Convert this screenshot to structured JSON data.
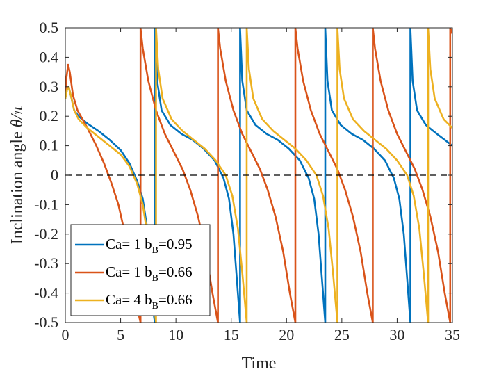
{
  "chart_data": {
    "type": "line",
    "title": "",
    "xlabel": "Time",
    "ylabel_text": "Inclination angle ",
    "ylabel_symbol": "θ/π",
    "xlim": [
      0,
      35
    ],
    "ylim": [
      -0.5,
      0.5
    ],
    "xticks": [
      0,
      5,
      10,
      15,
      20,
      25,
      30,
      35
    ],
    "xtick_labels": [
      "0",
      "5",
      "10",
      "15",
      "20",
      "25",
      "30",
      "35"
    ],
    "yticks": [
      -0.5,
      -0.4,
      -0.3,
      -0.2,
      -0.1,
      0,
      0.1,
      0.2,
      0.3,
      0.4,
      0.5
    ],
    "ytick_labels": [
      "-0.5",
      "-0.4",
      "-0.3",
      "-0.2",
      "-0.1",
      "0",
      "0.1",
      "0.2",
      "0.3",
      "0.4",
      "0.5"
    ],
    "grid": false,
    "reference_line": {
      "y": 0,
      "style": "dashed",
      "color": "#000000"
    },
    "legend_position": "bottom-left",
    "series": [
      {
        "name": "Ca= 1 b_B=0.95",
        "legend_main": "Ca= 1 b",
        "legend_sub": "B",
        "legend_tail": "=0.95",
        "color": "#0072BD",
        "period": 7.7,
        "start_peak": [
          0.25,
          0.3
        ],
        "points": [
          [
            0.0,
            0.26
          ],
          [
            0.15,
            0.29
          ],
          [
            0.3,
            0.3
          ],
          [
            0.5,
            0.27
          ],
          [
            0.8,
            0.22
          ],
          [
            1.2,
            0.2
          ],
          [
            2.0,
            0.175
          ],
          [
            3.0,
            0.15
          ],
          [
            4.0,
            0.12
          ],
          [
            5.0,
            0.085
          ],
          [
            5.8,
            0.04
          ],
          [
            6.5,
            -0.02
          ],
          [
            7.0,
            -0.08
          ],
          [
            7.4,
            -0.18
          ],
          [
            7.7,
            -0.32
          ],
          [
            7.9,
            -0.45
          ],
          [
            8.1,
            -0.5
          ],
          [
            8.1,
            0.5
          ],
          [
            8.3,
            0.32
          ],
          [
            8.7,
            0.22
          ],
          [
            9.5,
            0.17
          ],
          [
            10.5,
            0.14
          ],
          [
            11.5,
            0.12
          ],
          [
            12.5,
            0.09
          ],
          [
            13.5,
            0.05
          ],
          [
            14.3,
            -0.01
          ],
          [
            14.8,
            -0.08
          ],
          [
            15.2,
            -0.2
          ],
          [
            15.5,
            -0.35
          ],
          [
            15.8,
            -0.5
          ],
          [
            15.8,
            0.5
          ],
          [
            16.0,
            0.32
          ],
          [
            16.4,
            0.22
          ],
          [
            17.2,
            0.17
          ],
          [
            18.2,
            0.14
          ],
          [
            19.2,
            0.12
          ],
          [
            20.2,
            0.09
          ],
          [
            21.2,
            0.05
          ],
          [
            22.0,
            -0.01
          ],
          [
            22.5,
            -0.08
          ],
          [
            22.9,
            -0.2
          ],
          [
            23.2,
            -0.35
          ],
          [
            23.5,
            -0.5
          ],
          [
            23.5,
            0.5
          ],
          [
            23.7,
            0.32
          ],
          [
            24.1,
            0.22
          ],
          [
            24.9,
            0.17
          ],
          [
            25.9,
            0.14
          ],
          [
            26.9,
            0.12
          ],
          [
            27.9,
            0.09
          ],
          [
            28.9,
            0.05
          ],
          [
            29.7,
            -0.01
          ],
          [
            30.2,
            -0.08
          ],
          [
            30.6,
            -0.2
          ],
          [
            30.9,
            -0.35
          ],
          [
            31.2,
            -0.5
          ],
          [
            31.2,
            0.5
          ],
          [
            31.4,
            0.32
          ],
          [
            31.8,
            0.22
          ],
          [
            32.6,
            0.17
          ],
          [
            33.6,
            0.14
          ],
          [
            35.0,
            0.1
          ]
        ]
      },
      {
        "name": "Ca= 1 b_B=0.66",
        "legend_main": "Ca= 1 b",
        "legend_sub": "B",
        "legend_tail": "=0.66",
        "color": "#D95319",
        "points": [
          [
            0.0,
            0.28
          ],
          [
            0.1,
            0.33
          ],
          [
            0.25,
            0.375
          ],
          [
            0.4,
            0.35
          ],
          [
            0.7,
            0.27
          ],
          [
            1.1,
            0.22
          ],
          [
            2.0,
            0.16
          ],
          [
            2.8,
            0.1
          ],
          [
            3.5,
            0.04
          ],
          [
            4.2,
            -0.03
          ],
          [
            4.8,
            -0.1
          ],
          [
            5.4,
            -0.2
          ],
          [
            6.0,
            -0.32
          ],
          [
            6.5,
            -0.45
          ],
          [
            6.8,
            -0.5
          ],
          [
            6.8,
            0.5
          ],
          [
            7.0,
            0.43
          ],
          [
            7.5,
            0.32
          ],
          [
            8.2,
            0.22
          ],
          [
            9.0,
            0.14
          ],
          [
            9.8,
            0.08
          ],
          [
            10.6,
            0.02
          ],
          [
            11.3,
            -0.05
          ],
          [
            12.0,
            -0.14
          ],
          [
            12.7,
            -0.26
          ],
          [
            13.3,
            -0.4
          ],
          [
            13.8,
            -0.5
          ],
          [
            13.8,
            0.5
          ],
          [
            14.0,
            0.43
          ],
          [
            14.5,
            0.32
          ],
          [
            15.2,
            0.22
          ],
          [
            16.0,
            0.14
          ],
          [
            16.8,
            0.08
          ],
          [
            17.6,
            0.02
          ],
          [
            18.3,
            -0.05
          ],
          [
            19.0,
            -0.14
          ],
          [
            19.7,
            -0.26
          ],
          [
            20.3,
            -0.4
          ],
          [
            20.8,
            -0.5
          ],
          [
            20.8,
            0.5
          ],
          [
            21.0,
            0.43
          ],
          [
            21.5,
            0.32
          ],
          [
            22.2,
            0.22
          ],
          [
            23.0,
            0.14
          ],
          [
            23.8,
            0.08
          ],
          [
            24.6,
            0.02
          ],
          [
            25.3,
            -0.05
          ],
          [
            26.0,
            -0.14
          ],
          [
            26.7,
            -0.26
          ],
          [
            27.3,
            -0.4
          ],
          [
            27.8,
            -0.5
          ],
          [
            27.8,
            0.5
          ],
          [
            28.0,
            0.43
          ],
          [
            28.5,
            0.32
          ],
          [
            29.2,
            0.22
          ],
          [
            30.0,
            0.14
          ],
          [
            30.8,
            0.08
          ],
          [
            31.6,
            0.02
          ],
          [
            32.3,
            -0.05
          ],
          [
            33.0,
            -0.14
          ],
          [
            33.7,
            -0.26
          ],
          [
            34.3,
            -0.4
          ],
          [
            34.8,
            -0.5
          ],
          [
            34.8,
            0.5
          ],
          [
            35.0,
            0.48
          ]
        ]
      },
      {
        "name": "Ca= 4 b_B=0.66",
        "legend_main": "Ca= 4 b",
        "legend_sub": "B",
        "legend_tail": "=0.66",
        "color": "#EDB120",
        "points": [
          [
            0.0,
            0.26
          ],
          [
            0.15,
            0.29
          ],
          [
            0.3,
            0.3
          ],
          [
            0.5,
            0.27
          ],
          [
            0.8,
            0.22
          ],
          [
            1.2,
            0.19
          ],
          [
            2.0,
            0.16
          ],
          [
            3.0,
            0.13
          ],
          [
            4.0,
            0.1
          ],
          [
            5.0,
            0.07
          ],
          [
            5.8,
            0.03
          ],
          [
            6.5,
            -0.03
          ],
          [
            7.0,
            -0.1
          ],
          [
            7.5,
            -0.22
          ],
          [
            7.9,
            -0.38
          ],
          [
            8.2,
            -0.5
          ],
          [
            8.2,
            0.5
          ],
          [
            8.4,
            0.36
          ],
          [
            8.8,
            0.26
          ],
          [
            9.6,
            0.19
          ],
          [
            10.6,
            0.15
          ],
          [
            11.6,
            0.12
          ],
          [
            12.6,
            0.09
          ],
          [
            13.6,
            0.05
          ],
          [
            14.5,
            0.0
          ],
          [
            15.1,
            -0.07
          ],
          [
            15.6,
            -0.18
          ],
          [
            16.0,
            -0.33
          ],
          [
            16.4,
            -0.5
          ],
          [
            16.4,
            0.5
          ],
          [
            16.6,
            0.36
          ],
          [
            17.0,
            0.26
          ],
          [
            17.8,
            0.19
          ],
          [
            18.8,
            0.15
          ],
          [
            19.8,
            0.12
          ],
          [
            20.8,
            0.09
          ],
          [
            21.8,
            0.05
          ],
          [
            22.7,
            0.0
          ],
          [
            23.3,
            -0.07
          ],
          [
            23.8,
            -0.18
          ],
          [
            24.2,
            -0.33
          ],
          [
            24.6,
            -0.5
          ],
          [
            24.6,
            0.5
          ],
          [
            24.8,
            0.36
          ],
          [
            25.2,
            0.26
          ],
          [
            26.0,
            0.19
          ],
          [
            27.0,
            0.15
          ],
          [
            28.0,
            0.12
          ],
          [
            29.0,
            0.09
          ],
          [
            30.0,
            0.05
          ],
          [
            30.9,
            0.0
          ],
          [
            31.5,
            -0.07
          ],
          [
            32.0,
            -0.18
          ],
          [
            32.4,
            -0.33
          ],
          [
            32.8,
            -0.5
          ],
          [
            32.8,
            0.5
          ],
          [
            33.0,
            0.36
          ],
          [
            33.4,
            0.26
          ],
          [
            34.2,
            0.19
          ],
          [
            35.0,
            0.16
          ]
        ]
      }
    ]
  }
}
